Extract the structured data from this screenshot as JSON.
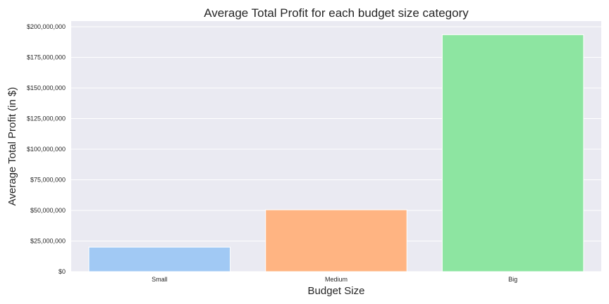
{
  "chart_data": {
    "type": "bar",
    "title": "Average Total Profit for each budget size category",
    "xlabel": "Budget Size",
    "ylabel": "Average Total Profit (in $)",
    "categories": [
      "Small",
      "Medium",
      "Big"
    ],
    "values": [
      20000000,
      50500000,
      193500000
    ],
    "ylim": [
      0,
      200000000
    ],
    "yticks": [
      0,
      25000000,
      50000000,
      75000000,
      100000000,
      125000000,
      150000000,
      175000000,
      200000000
    ],
    "ytick_labels": [
      "$0",
      "$25,000,000",
      "$50,000,000",
      "$75,000,000",
      "$100,000,000",
      "$125,000,000",
      "$150,000,000",
      "$175,000,000",
      "$200,000,000"
    ],
    "colors": [
      "#a1c9f4",
      "#ffb482",
      "#8de5a1"
    ],
    "plot_background": "#eaeaf2",
    "gridlines": true,
    "legend": "none"
  }
}
